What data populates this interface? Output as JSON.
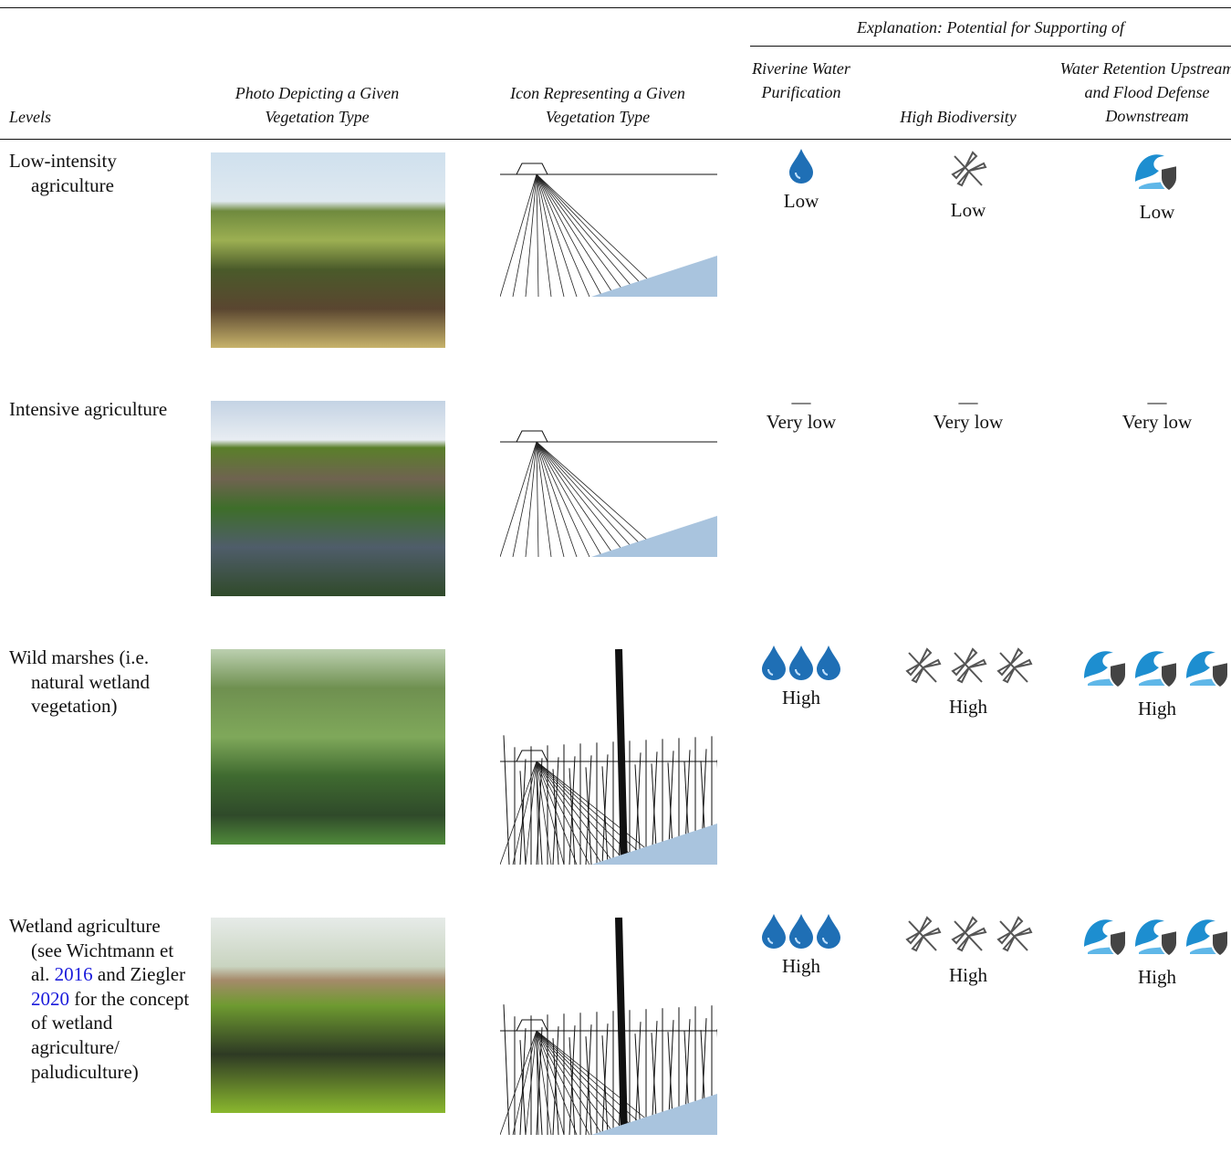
{
  "header": {
    "group_title": "Explanation: Potential for Supporting of",
    "columns": [
      "Levels",
      "Photo Depicting a Given Vegetation Type",
      "Icon Representing a Given Vegetation Type",
      "Riverine Water Purification",
      "High Biodiversity",
      "Water Retention Upstream and Flood Defense Downstream"
    ]
  },
  "table": {
    "rows": [
      {
        "level": [
          "Low-intensity agriculture"
        ],
        "ratings": [
          {
            "icons": 1,
            "label": "Low"
          },
          {
            "icons": 1,
            "label": "Low"
          },
          {
            "icons": 1,
            "label": "Low"
          }
        ]
      },
      {
        "level": [
          "Intensive agriculture"
        ],
        "ratings": [
          {
            "icons": 0,
            "dash": "—",
            "label": "Very low"
          },
          {
            "icons": 0,
            "dash": "—",
            "label": "Very low"
          },
          {
            "icons": 0,
            "dash": "—",
            "label": "Very low"
          }
        ]
      },
      {
        "level": [
          "Wild marshes (i.e. natural wetland vegetation)"
        ],
        "ratings": [
          {
            "icons": 3,
            "label": "High"
          },
          {
            "icons": 3,
            "label": "High"
          },
          {
            "icons": 3,
            "label": "High"
          }
        ]
      },
      {
        "level": [
          "Wetland agriculture (see Wichtmann et al. ",
          "2016",
          " and Ziegler ",
          "2020",
          " for the concept of wetland agriculture/ paludiculture)"
        ],
        "ratings": [
          {
            "icons": 3,
            "label": "High"
          },
          {
            "icons": 3,
            "label": "High"
          },
          {
            "icons": 3,
            "label": "High"
          }
        ]
      }
    ]
  }
}
